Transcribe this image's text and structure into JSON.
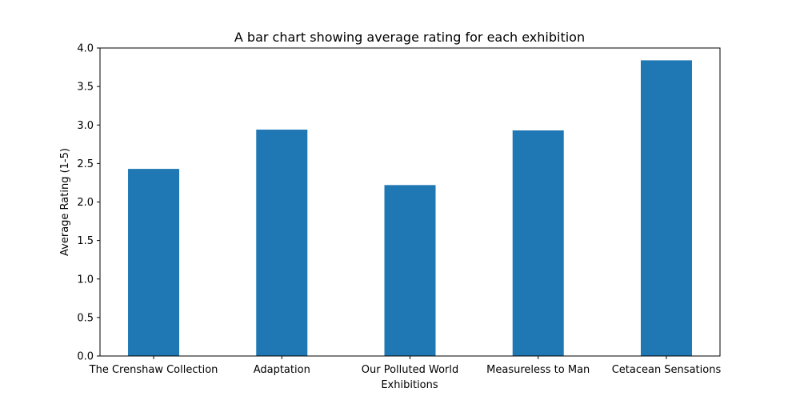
{
  "chart_data": {
    "type": "bar",
    "title": "A bar chart showing average rating for each exhibition",
    "xlabel": "Exhibitions",
    "ylabel": "Average Rating (1-5)",
    "categories": [
      "The Crenshaw Collection",
      "Adaptation",
      "Our Polluted World",
      "Measureless to Man",
      "Cetacean Sensations"
    ],
    "values": [
      2.43,
      2.94,
      2.22,
      2.93,
      3.84
    ],
    "ylim": [
      0,
      4.0
    ],
    "yticks": [
      "0.0",
      "0.5",
      "1.0",
      "1.5",
      "2.0",
      "2.5",
      "3.0",
      "3.5",
      "4.0"
    ],
    "grid": false,
    "bar_color": "#1f77b4"
  }
}
